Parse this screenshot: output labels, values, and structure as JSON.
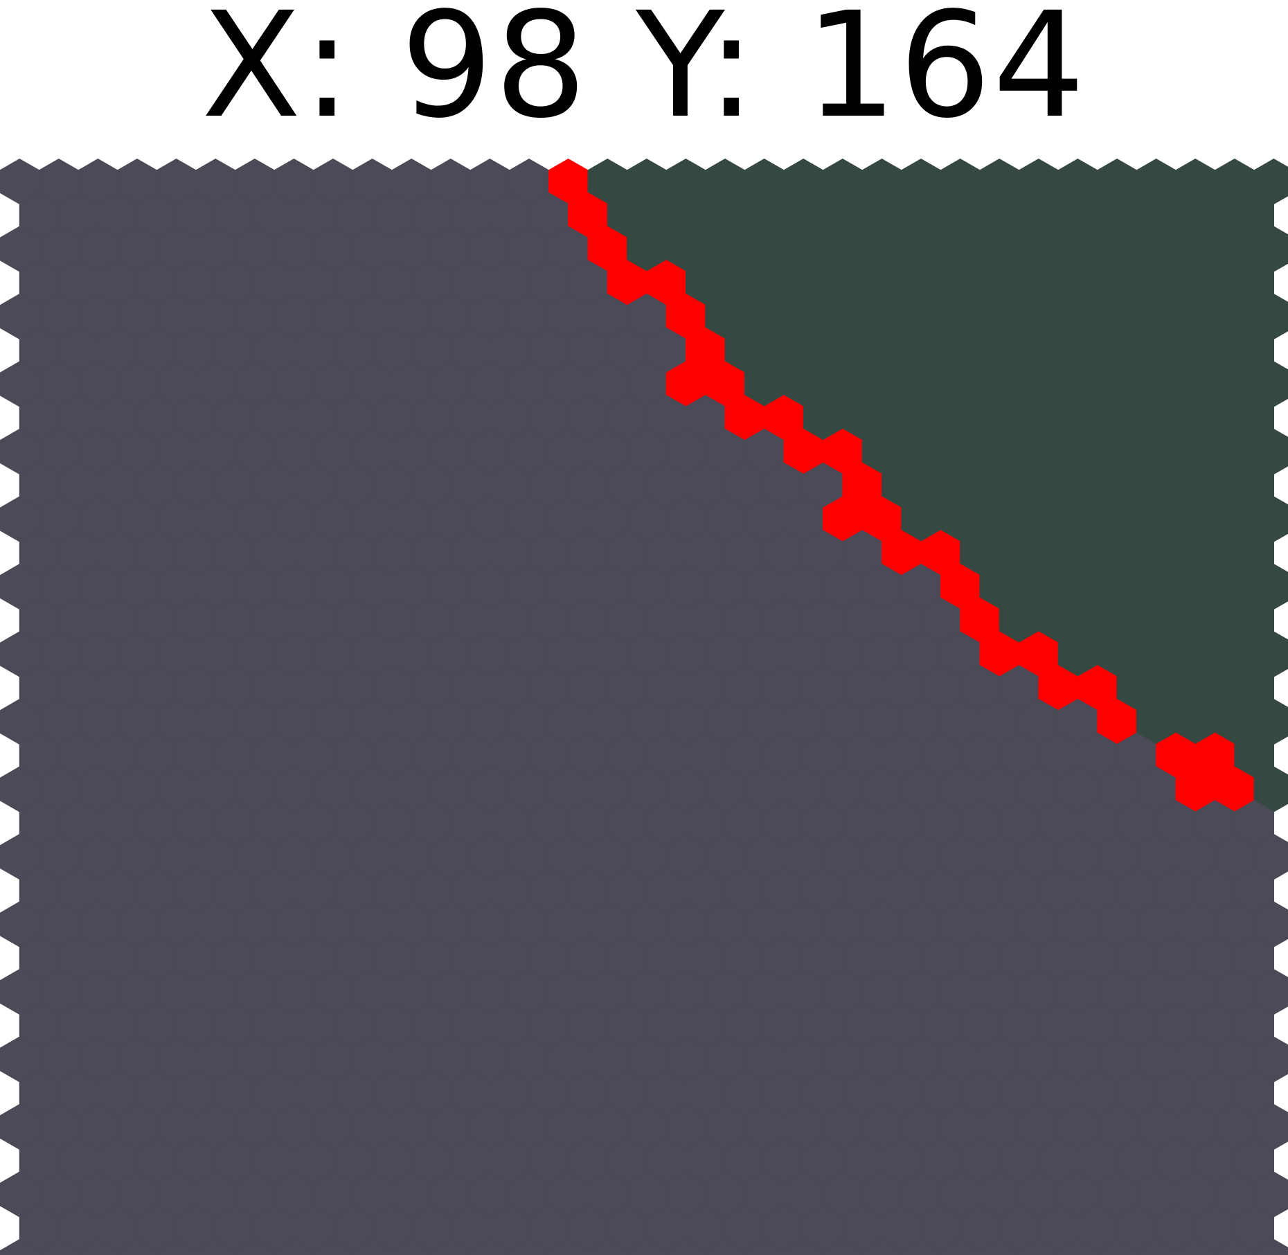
{
  "readout": {
    "x_label": "X:",
    "x_value": "98",
    "y_label": "Y:",
    "y_value": "164"
  },
  "map": {
    "regions": [
      {
        "name": "dark-grey-region",
        "color": "#4b4a57"
      },
      {
        "name": "dark-green-region",
        "color": "#364842"
      }
    ],
    "path": {
      "name": "red-path",
      "color": "#ff0000"
    },
    "background": "#ffffff"
  }
}
